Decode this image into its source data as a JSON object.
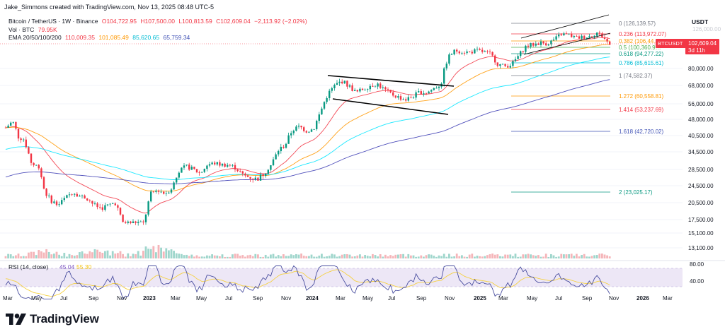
{
  "header": {
    "caption": "Jake_Simmons created with TradingView.com, Nov 13, 2025 08:48 UTC-5",
    "symbol": "Bitcoin / TetherUS · 1W · Binance",
    "ohlc": {
      "o": "O104,722.95",
      "h": "H107,500.00",
      "l": "L100,813.59",
      "c": "C102,609.04",
      "chg": "−2,113.92 (−2.02%)"
    },
    "volume_label": "Vol · BTC",
    "volume_value": "79.95K",
    "ema_label": "EMA 20/50/100/200",
    "ema_values": [
      "110,009.35",
      "101,085.49",
      "85,620.65",
      "65,759.34"
    ]
  },
  "price_axis": {
    "unit": "USDT",
    "labels": [
      "80,000.00",
      "68,000.00",
      "56,000.00",
      "48,000.00",
      "40,500.00",
      "34,500.00",
      "28,500.00",
      "24,500.00",
      "20,500.00",
      "17,500.00",
      "15,100.00",
      "13,100.00"
    ],
    "top_partial": "126,000.00",
    "current_badge": {
      "ticker": "BTCUSDT",
      "price": "102,609.04",
      "countdown": "3d 11h"
    }
  },
  "rsi": {
    "label": "RSI (14, close)",
    "values": [
      "45.04",
      "55.30"
    ],
    "axis": [
      "80.00",
      "40.00"
    ]
  },
  "time_axis": [
    "Mar",
    "May",
    "Jul",
    "Sep",
    "Nov",
    "2023",
    "Mar",
    "May",
    "Jul",
    "Sep",
    "Nov",
    "2024",
    "Mar",
    "May",
    "Jul",
    "Sep",
    "Nov",
    "2025",
    "Mar",
    "May",
    "Jul",
    "Sep",
    "Nov",
    "2026",
    "Mar"
  ],
  "fib_levels": [
    {
      "text": "0 (126,139.57)",
      "color": "#787b86"
    },
    {
      "text": "0.236 (113,972.07)",
      "color": "#f23645"
    },
    {
      "text": "0.382 (106,44…",
      "color": "#ff9800"
    },
    {
      "text": "0.5 (100,360.9…",
      "color": "#4caf50"
    },
    {
      "text": "0.618 (94,277.22)",
      "color": "#089981"
    },
    {
      "text": "0.786 (85,615.61)",
      "color": "#00bcd4"
    },
    {
      "text": "1 (74,582.37)",
      "color": "#787b86"
    },
    {
      "text": "1.272 (60,558.81)",
      "color": "#ff9800"
    },
    {
      "text": "1.414 (53,237.69)",
      "color": "#f23645"
    },
    {
      "text": "1.618 (42,720.02)",
      "color": "#3f51b5"
    },
    {
      "text": "2 (23,025.17)",
      "color": "#089981"
    }
  ],
  "colors": {
    "up": "#089981",
    "down": "#f23645",
    "ema20": "#f23645",
    "ema50": "#ff9800",
    "ema100": "#00e5ff",
    "ema200": "#3f3fb5",
    "rsi_line": "#4a4fa0",
    "rsi_ma": "#f5d142",
    "rsi_band": "#ede7f6"
  },
  "brand": "TradingView"
}
